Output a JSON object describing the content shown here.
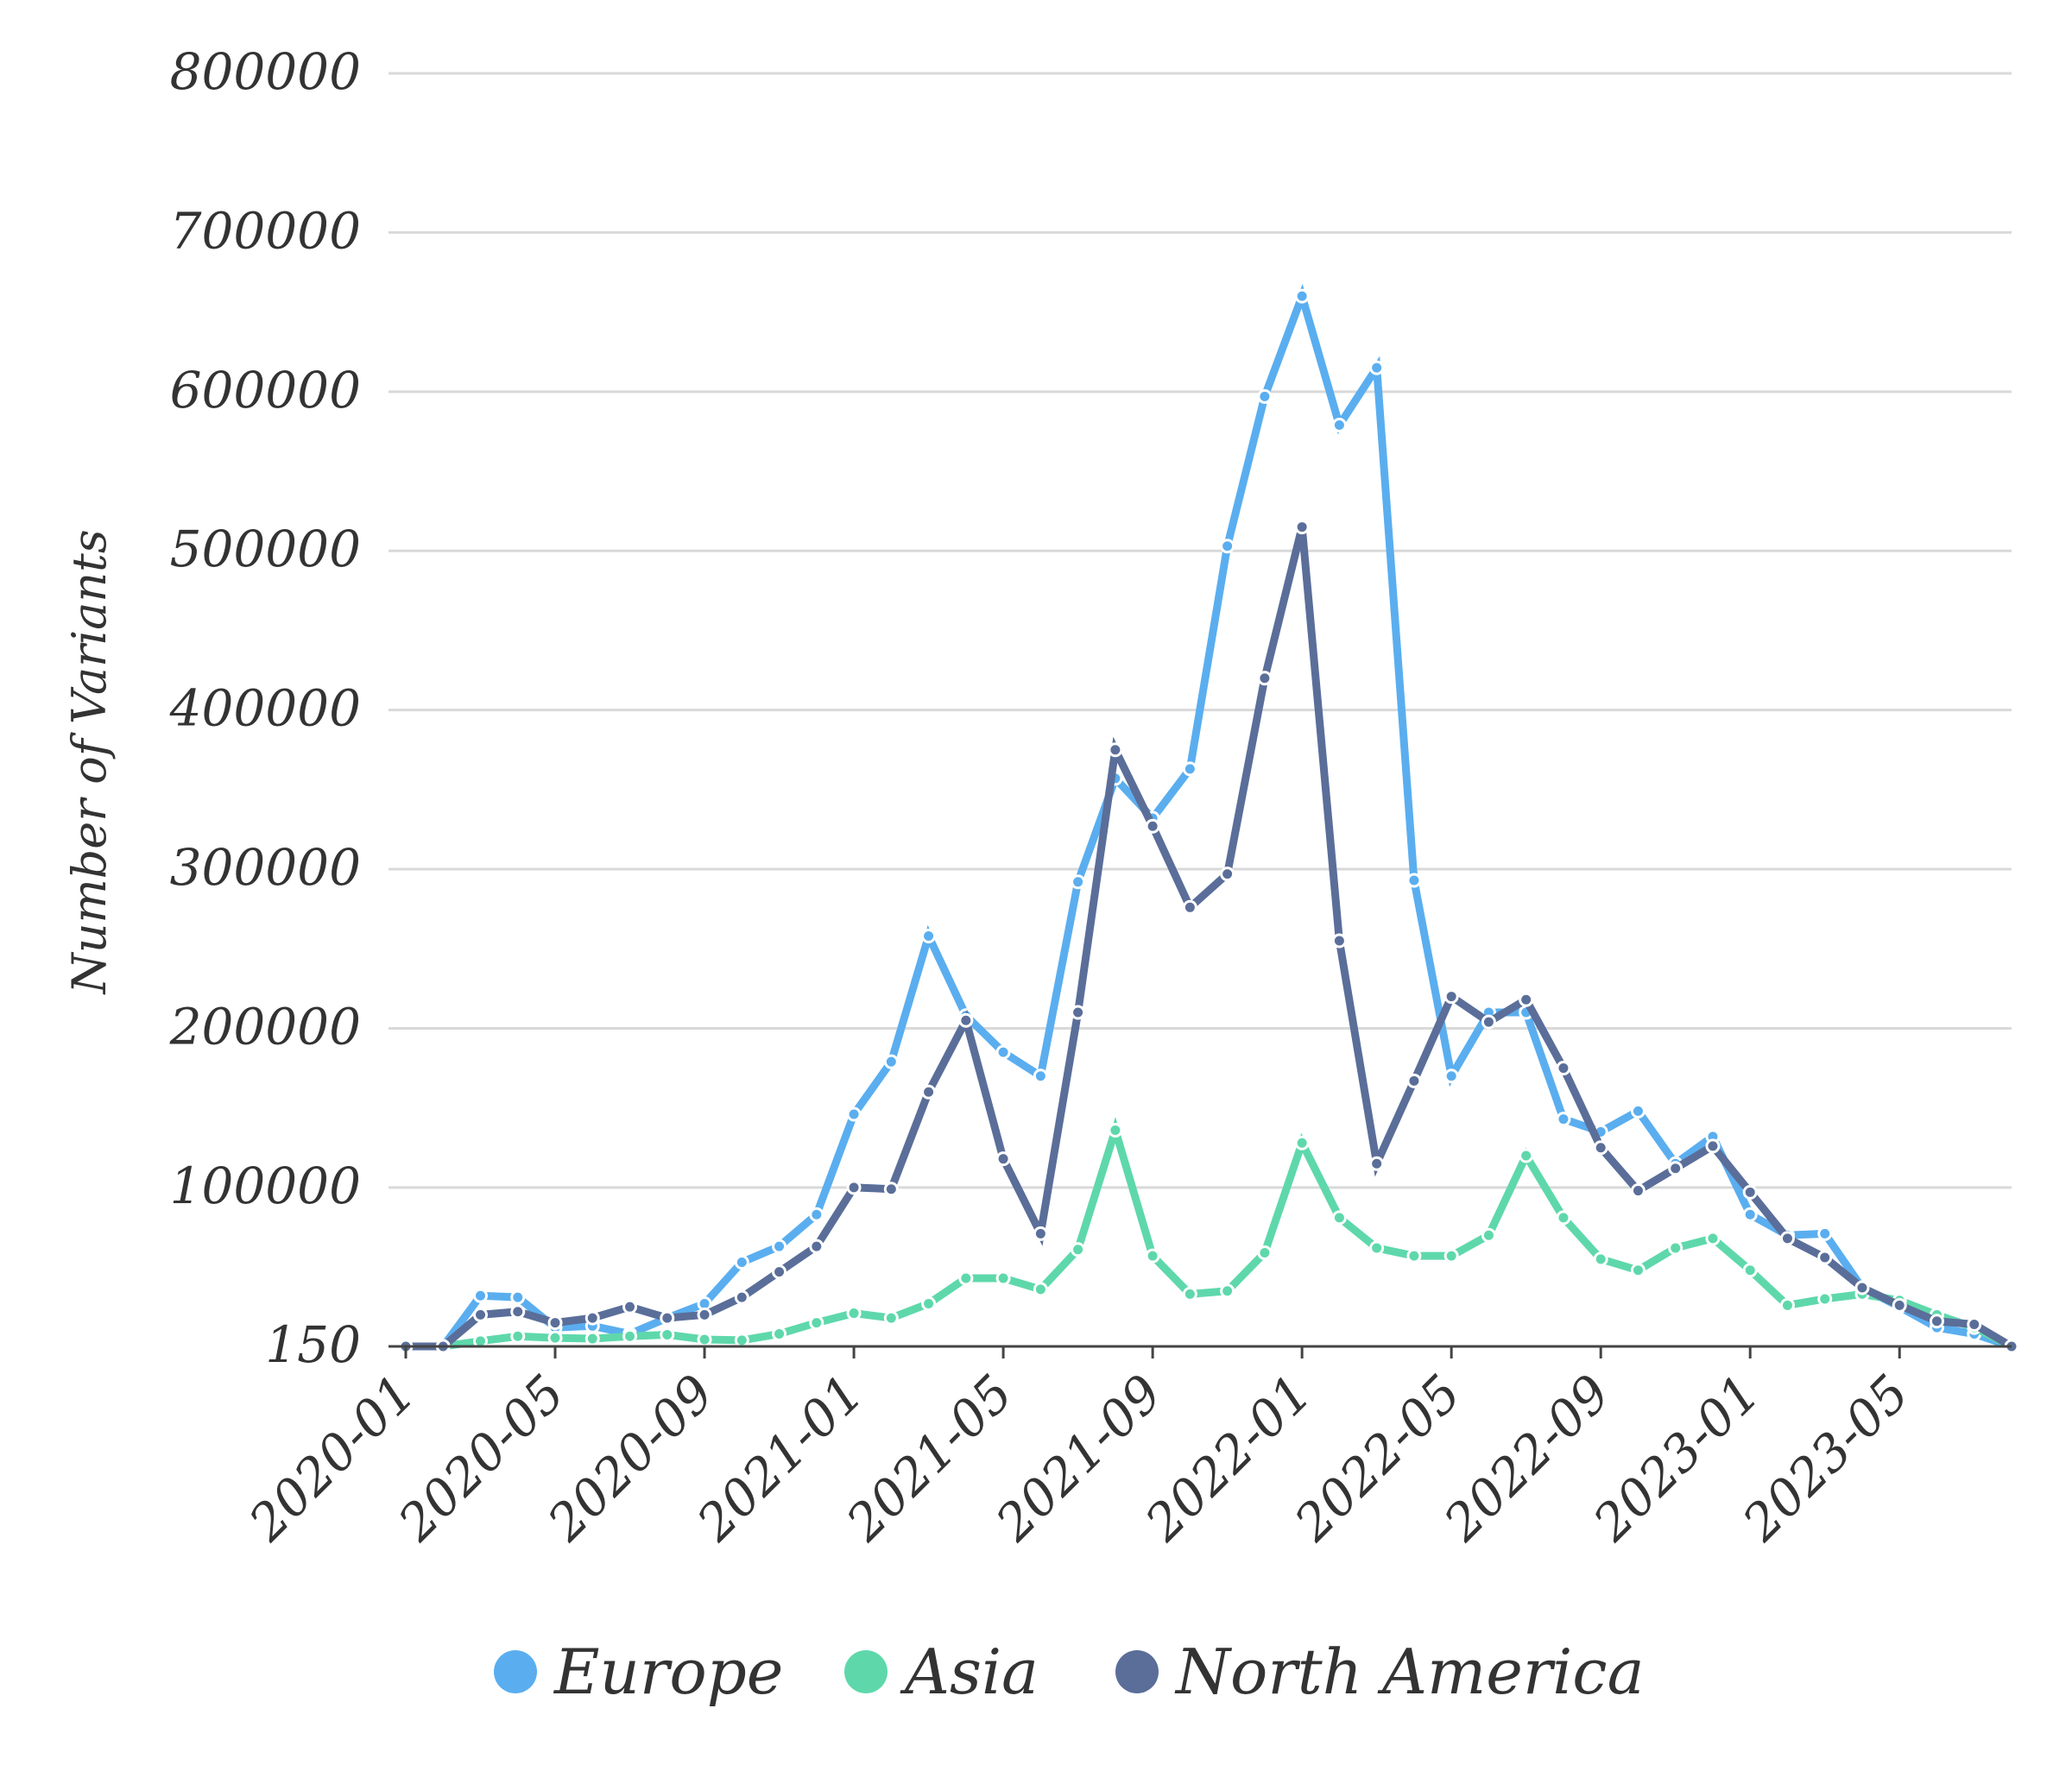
{
  "chart_data": {
    "type": "line",
    "title": "",
    "xlabel": "",
    "ylabel": "Number of Variants",
    "ylim": [
      150,
      800000
    ],
    "yticks": [
      150,
      100000,
      200000,
      300000,
      400000,
      500000,
      600000,
      700000,
      800000
    ],
    "ytick_labels": [
      "150",
      "100000",
      "200000",
      "300000",
      "400000",
      "500000",
      "600000",
      "700000",
      "800000"
    ],
    "xtick_labels": [
      "2020-01",
      "2020-05",
      "2020-09",
      "2021-01",
      "2021-05",
      "2021-09",
      "2022-01",
      "2022-05",
      "2022-09",
      "2023-01",
      "2023-05"
    ],
    "x": [
      "2020-01",
      "2020-02",
      "2020-03",
      "2020-04",
      "2020-05",
      "2020-06",
      "2020-07",
      "2020-08",
      "2020-09",
      "2020-10",
      "2020-11",
      "2020-12",
      "2021-01",
      "2021-02",
      "2021-03",
      "2021-04",
      "2021-05",
      "2021-06",
      "2021-07",
      "2021-08",
      "2021-09",
      "2021-10",
      "2021-11",
      "2021-12",
      "2022-01",
      "2022-02",
      "2022-03",
      "2022-04",
      "2022-05",
      "2022-06",
      "2022-07",
      "2022-08",
      "2022-09",
      "2022-10",
      "2022-11",
      "2022-12",
      "2023-01",
      "2023-02",
      "2023-03",
      "2023-04",
      "2023-05",
      "2023-06",
      "2023-07",
      "2023-08"
    ],
    "grid": true,
    "legend_position": "bottom-center",
    "colors": {
      "Europe": "#5aaeef",
      "Asia": "#5ed8ab",
      "North America": "#5a6e99"
    },
    "series": [
      {
        "name": "Europe",
        "color": "#5aaeef",
        "values": [
          150,
          150,
          32000,
          31000,
          12000,
          13000,
          8000,
          18000,
          27000,
          53000,
          63000,
          83000,
          146000,
          179000,
          258000,
          208000,
          185000,
          170000,
          292000,
          357000,
          332000,
          363000,
          503000,
          597000,
          660000,
          579000,
          615000,
          293000,
          170000,
          210000,
          210000,
          143000,
          135000,
          148000,
          115000,
          132000,
          83000,
          70000,
          71000,
          37000,
          25000,
          12000,
          8000,
          150
        ]
      },
      {
        "name": "Asia",
        "color": "#5ed8ab",
        "values": [
          150,
          150,
          3500,
          6500,
          5500,
          5000,
          6500,
          7500,
          4500,
          4000,
          8000,
          15000,
          21000,
          18000,
          27000,
          43000,
          43000,
          36000,
          61000,
          136000,
          57000,
          33000,
          35000,
          59000,
          128000,
          81000,
          62000,
          57000,
          57000,
          70000,
          120000,
          81000,
          55000,
          48000,
          62000,
          68000,
          48000,
          26000,
          30000,
          33000,
          29000,
          20000,
          12000,
          150
        ]
      },
      {
        "name": "North America",
        "color": "#5a6e99",
        "values": [
          150,
          150,
          20000,
          22000,
          15000,
          18000,
          25000,
          18000,
          20000,
          31000,
          47000,
          63000,
          100000,
          99000,
          160000,
          205000,
          118000,
          71000,
          210000,
          375000,
          327000,
          276000,
          297000,
          420000,
          515000,
          255000,
          115000,
          167000,
          220000,
          204000,
          218000,
          175000,
          125000,
          98000,
          112000,
          126000,
          97000,
          68000,
          56000,
          37000,
          26000,
          16000,
          14000,
          150
        ]
      }
    ]
  }
}
